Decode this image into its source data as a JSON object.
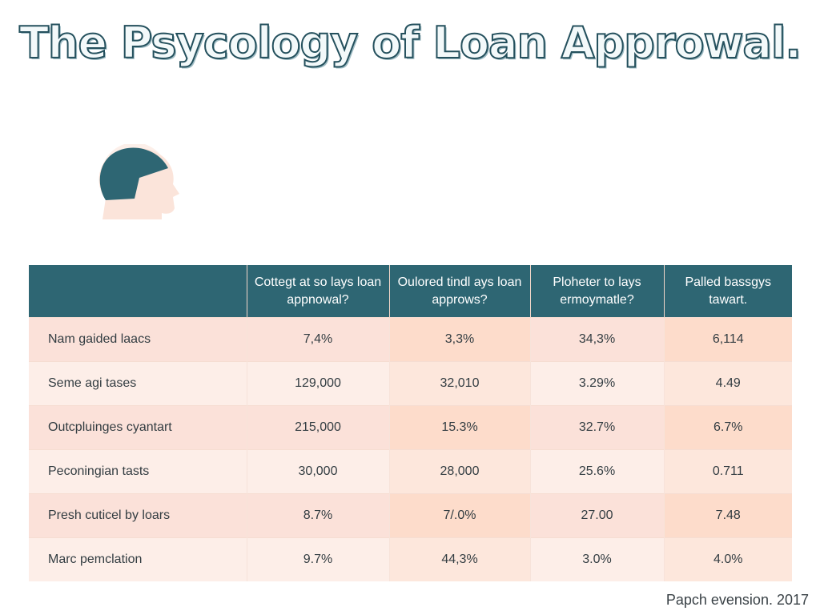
{
  "page": {
    "title": "The Psycology of Loan Approwal."
  },
  "colors": {
    "header_fill": "#2e6673",
    "title_stroke": "#24505d",
    "row_peach": "#fbe1d9",
    "row_light": "#fdeee8",
    "head_icon": "#2e6673",
    "head_silhouette": "#fbe4da"
  },
  "illustration": {
    "icon": "head-profile-icon"
  },
  "table": {
    "headers": [
      "",
      "Cottegt at so lays loan appnowal?",
      "Oulored tindl ays loan approws?",
      "Ploheter to lays ermoymatle?",
      "Palled bassgys tawart."
    ],
    "rows": [
      [
        "Nam gaided laacs",
        "7,4%",
        "3,3%",
        "34,3%",
        "6,114"
      ],
      [
        "Seme agi tases",
        "129,000",
        "32,010",
        "3.29%",
        "4.49"
      ],
      [
        "Outcpluinges cyantart",
        "215,000",
        "15.3%",
        "32.7%",
        "6.7%"
      ],
      [
        "Peconingian tasts",
        "30,000",
        "28,000",
        "25.6%",
        "0.711"
      ],
      [
        "Presh cuticel by loars",
        "8.7%",
        "7/.0%",
        "27.00",
        "7.48"
      ],
      [
        "Marc pemclation",
        "9.7%",
        "44,3%",
        "3.0%",
        "4.0%"
      ]
    ]
  },
  "footer": {
    "text": "Papch evension. 2017"
  }
}
